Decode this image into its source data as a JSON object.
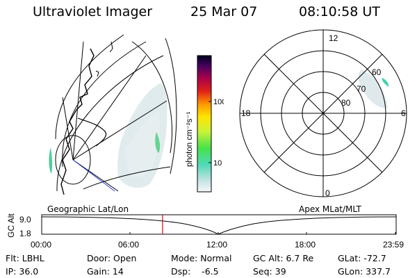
{
  "header": {
    "instrument": "Ultraviolet Imager",
    "date": "25 Mar 07",
    "time": "08:10:58 UT"
  },
  "colorbar": {
    "unit_label": "photon cm⁻²s⁻¹",
    "ticks": [
      "100",
      "10"
    ]
  },
  "polar": {
    "mlt_labels": [
      "12",
      "18",
      "6",
      "0"
    ],
    "lat_labels": [
      "60",
      "70",
      "80"
    ]
  },
  "panel_labels": {
    "left": "Geographic Lat/Lon",
    "right": "Apex MLat/MLT"
  },
  "timeline": {
    "ylabel": "GC Alt",
    "yticks": [
      "9.0",
      "1.8"
    ],
    "xticks": [
      "00:00",
      "06:00",
      "12:00",
      "18:00",
      "23:59"
    ],
    "current_time_fraction": 0.341
  },
  "info": {
    "filter": "Flt: LBHL",
    "door": "Door: Open",
    "mode": "Mode: Normal",
    "gc_alt": "GC Alt: 6.7 Re",
    "glat": "GLat: -72.7",
    "ip": "IP: 36.0",
    "gain": "Gain: 14",
    "dsp": "Dsp:    -6.5",
    "seq": "Seq: 39",
    "glon": "GLon: 337.7"
  },
  "colors": {
    "marker": "#d0000f",
    "grid": "#000000",
    "blue_line": "#2a3fe0"
  }
}
